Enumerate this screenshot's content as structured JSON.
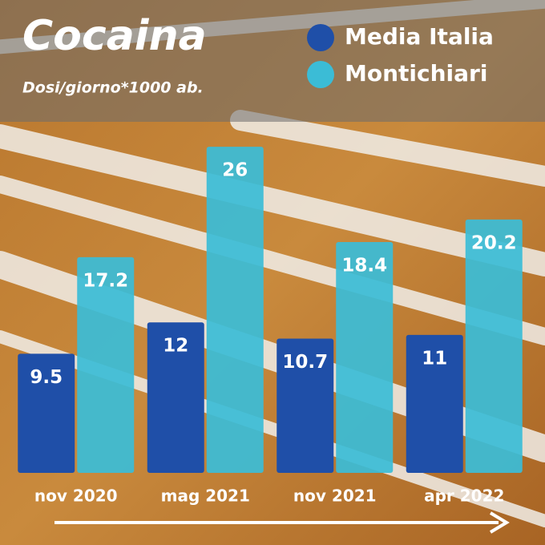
{
  "chart_data": {
    "type": "bar",
    "title": "Cocaina",
    "subtitle": "Dosi/giorno*1000 ab.",
    "categories": [
      "nov 2020",
      "mag 2021",
      "nov 2021",
      "apr 2022"
    ],
    "series": [
      {
        "name": "Media Italia",
        "color": "#1f4fa8",
        "values": [
          9.5,
          12,
          10.7,
          11
        ]
      },
      {
        "name": "Montichiari",
        "color": "#3bbcd6",
        "values": [
          17.2,
          26,
          18.4,
          20.2
        ]
      }
    ]
  }
}
